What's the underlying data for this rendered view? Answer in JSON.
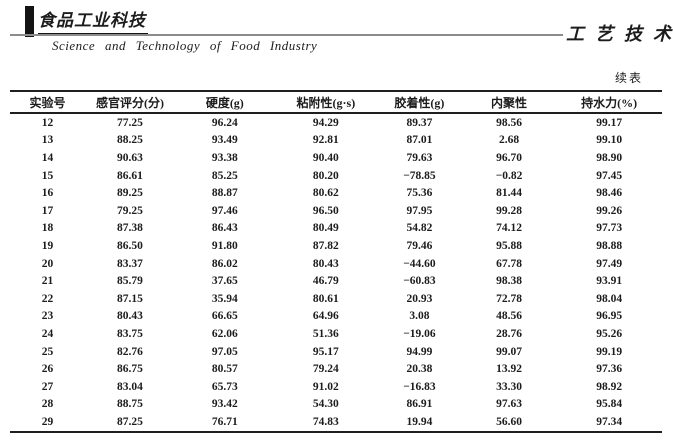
{
  "header": {
    "journal_logo_zh": "食品工业科技",
    "journal_name_en": "Science  and  Technology  of  Food  Industry",
    "section_title_zh": "工艺技术"
  },
  "table": {
    "continued_label": "续表",
    "columns": [
      "实验号",
      "感官评分(分)",
      "硬度(g)",
      "粘附性(g·s)",
      "胶着性(g)",
      "内聚性",
      "持水力(%)"
    ],
    "rows": [
      [
        "12",
        "77.25",
        "96.24",
        "94.29",
        "89.37",
        "98.56",
        "99.17"
      ],
      [
        "13",
        "88.25",
        "93.49",
        "92.81",
        "87.01",
        "2.68",
        "99.10"
      ],
      [
        "14",
        "90.63",
        "93.38",
        "90.40",
        "79.63",
        "96.70",
        "98.90"
      ],
      [
        "15",
        "86.61",
        "85.25",
        "80.20",
        "−78.85",
        "−0.82",
        "97.45"
      ],
      [
        "16",
        "89.25",
        "88.87",
        "80.62",
        "75.36",
        "81.44",
        "98.46"
      ],
      [
        "17",
        "79.25",
        "97.46",
        "96.50",
        "97.95",
        "99.28",
        "99.26"
      ],
      [
        "18",
        "87.38",
        "86.43",
        "80.49",
        "54.82",
        "74.12",
        "97.73"
      ],
      [
        "19",
        "86.50",
        "91.80",
        "87.82",
        "79.46",
        "95.88",
        "98.88"
      ],
      [
        "20",
        "83.37",
        "86.02",
        "80.43",
        "−44.60",
        "67.78",
        "97.49"
      ],
      [
        "21",
        "85.79",
        "37.65",
        "46.79",
        "−60.83",
        "98.38",
        "93.91"
      ],
      [
        "22",
        "87.15",
        "35.94",
        "80.61",
        "20.93",
        "72.78",
        "98.04"
      ],
      [
        "23",
        "80.43",
        "66.65",
        "64.96",
        "3.08",
        "48.56",
        "96.95"
      ],
      [
        "24",
        "83.75",
        "62.06",
        "51.36",
        "−19.06",
        "28.76",
        "95.26"
      ],
      [
        "25",
        "82.76",
        "97.05",
        "95.17",
        "94.99",
        "99.07",
        "99.19"
      ],
      [
        "26",
        "86.75",
        "80.57",
        "79.24",
        "20.38",
        "13.92",
        "97.36"
      ],
      [
        "27",
        "83.04",
        "65.73",
        "91.02",
        "−16.83",
        "33.30",
        "98.92"
      ],
      [
        "28",
        "88.75",
        "93.42",
        "54.30",
        "86.91",
        "97.63",
        "95.84"
      ],
      [
        "29",
        "87.25",
        "76.71",
        "74.83",
        "19.94",
        "56.60",
        "97.34"
      ]
    ]
  },
  "colors": {
    "text": "#1c1c1c",
    "table_border": "#1f1f1f",
    "header_rule": "#8c8c8c",
    "background": "#ffffff"
  }
}
